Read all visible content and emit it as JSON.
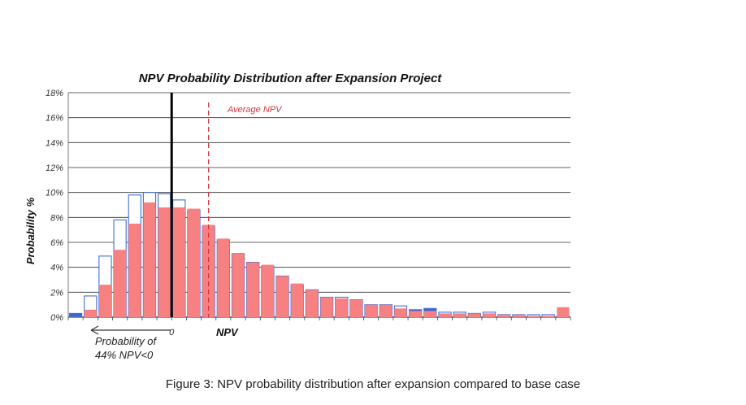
{
  "caption": "Figure 3: NPV probability distribution after expansion compared to base case",
  "chart_data": {
    "type": "bar",
    "title": "NPV Probability Distribution after Expansion Project",
    "xlabel": "NPV",
    "ylabel": "Probability %",
    "ylim": [
      0,
      18
    ],
    "y_ticks": [
      "0%",
      "2%",
      "4%",
      "6%",
      "8%",
      "10%",
      "12%",
      "14%",
      "16%",
      "18%"
    ],
    "zero_label": "0",
    "zero_bin": 7,
    "average_bin": 9,
    "average_label": "Average NPV",
    "annotation_arrow": "Probability of",
    "annotation_value": "44% NPV<0",
    "grid": true,
    "series": [
      {
        "values": [
          0.3,
          1.7,
          4.9,
          7.8,
          9.8,
          10.0,
          9.9,
          9.4,
          8.6,
          7.3,
          6.2,
          5.1,
          4.4,
          4.1,
          3.3,
          2.6,
          2.2,
          1.6,
          1.6,
          1.4,
          1.0,
          1.0,
          0.9,
          0.6,
          0.7,
          0.4,
          0.4,
          0.3,
          0.4,
          0.2,
          0.2,
          0.2,
          0.2,
          0.1
        ]
      },
      {
        "values": [
          0.0,
          0.6,
          2.6,
          5.4,
          7.5,
          9.2,
          8.8,
          8.8,
          8.7,
          7.4,
          6.3,
          5.1,
          4.4,
          4.2,
          3.3,
          2.7,
          2.2,
          1.6,
          1.5,
          1.4,
          1.0,
          1.0,
          0.7,
          0.5,
          0.5,
          0.3,
          0.3,
          0.3,
          0.3,
          0.2,
          0.2,
          0.1,
          0.1,
          0.8
        ]
      }
    ],
    "colors": {
      "expansion_fill": "#f78080",
      "base_outline": "#3d6fd9",
      "base_fill": "#4466cc",
      "grid": "#333333",
      "zero_line": "#000000",
      "average_line": "#d2363c"
    }
  }
}
